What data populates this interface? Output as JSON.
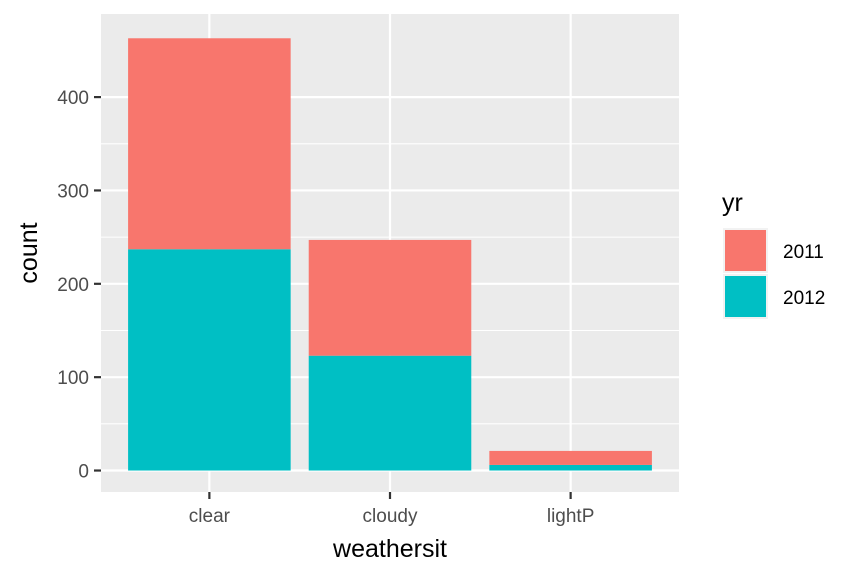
{
  "chart_data": {
    "type": "bar",
    "stacked": true,
    "title": "",
    "xlabel": "weathersit",
    "ylabel": "count",
    "categories": [
      "clear",
      "cloudy",
      "lightP"
    ],
    "series": [
      {
        "name": "2011",
        "color": "#F8766D",
        "values": [
          226,
          124,
          15
        ]
      },
      {
        "name": "2012",
        "color": "#00BFC4",
        "values": [
          237,
          123,
          6
        ]
      }
    ],
    "ylim": [
      -23,
      489
    ],
    "yticks": [
      0,
      100,
      200,
      300,
      400
    ],
    "legend": {
      "title": "yr",
      "position": "right",
      "entries": [
        "2011",
        "2012"
      ]
    },
    "panel_background": "#EBEBEB",
    "grid": true
  }
}
